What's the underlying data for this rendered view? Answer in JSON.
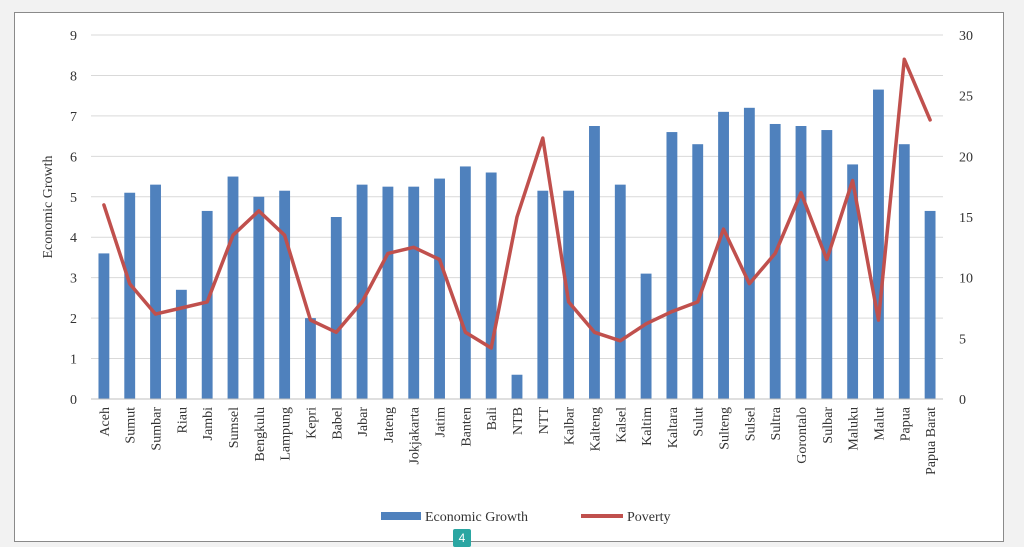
{
  "page": {
    "badge": "4"
  },
  "chart_data": {
    "type": "bar+line",
    "title": "",
    "categories": [
      "Aceh",
      "Sumut",
      "Sumbar",
      "Riau",
      "Jambi",
      "Sumsel",
      "Bengkulu",
      "Lampung",
      "Kepri",
      "Babel",
      "Jabar",
      "Jateng",
      "Jokjakarta",
      "Jatim",
      "Banten",
      "Bali",
      "NTB",
      "NTT",
      "Kalbar",
      "Kalteng",
      "Kalsel",
      "Kaltim",
      "Kaltara",
      "Sulut",
      "Sulteng",
      "Sulsel",
      "Sultra",
      "Gorontalo",
      "Sulbar",
      "Maluku",
      "Malut",
      "Papua",
      "Papua Barat"
    ],
    "series": [
      {
        "name": "Economic Growth",
        "type": "bar",
        "axis": "left",
        "color": "#4f81bd",
        "values": [
          3.6,
          5.1,
          5.3,
          2.7,
          4.65,
          5.5,
          5.0,
          5.15,
          2.0,
          4.5,
          5.3,
          5.25,
          5.25,
          5.45,
          5.75,
          5.6,
          0.6,
          5.15,
          5.15,
          6.75,
          5.3,
          3.1,
          6.6,
          6.3,
          7.1,
          7.2,
          6.8,
          6.75,
          6.65,
          5.8,
          7.65,
          6.3,
          4.65
        ]
      },
      {
        "name": "Poverty",
        "type": "line",
        "axis": "right",
        "color": "#c0504d",
        "values": [
          16.0,
          9.5,
          7.0,
          7.5,
          8.0,
          13.5,
          15.5,
          13.5,
          6.5,
          5.5,
          8.0,
          12.0,
          12.5,
          11.5,
          5.5,
          4.2,
          15.0,
          21.5,
          8.0,
          5.5,
          4.8,
          6.2,
          7.2,
          8.0,
          14.0,
          9.5,
          12.0,
          17.0,
          11.5,
          18.0,
          6.5,
          28.0,
          23.0
        ]
      }
    ],
    "ylabel": "Economic Growth",
    "ylabel_right": "",
    "ylim": [
      0,
      9
    ],
    "yticks": [
      "0",
      "1",
      "2",
      "3",
      "4",
      "5",
      "6",
      "7",
      "8",
      "9"
    ],
    "ylim_right": [
      0,
      30
    ],
    "yticks_right": [
      "0",
      "5",
      "10",
      "15",
      "20",
      "25",
      "30"
    ],
    "grid": "horizontal",
    "legend": "bottom-center"
  }
}
